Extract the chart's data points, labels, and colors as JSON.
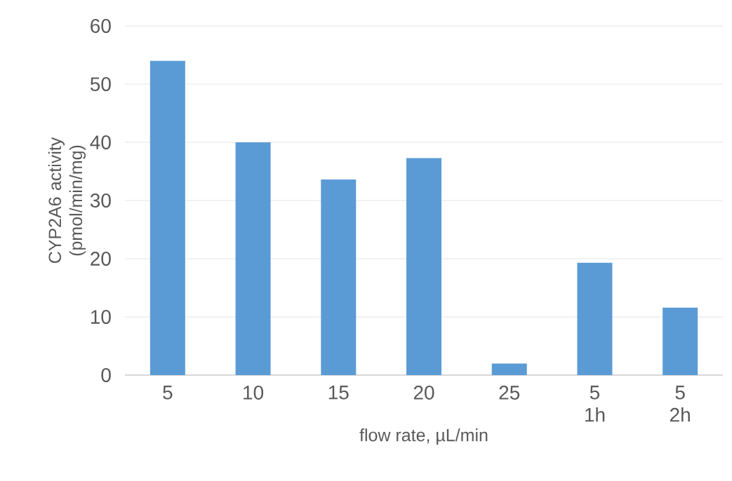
{
  "chart_data": {
    "type": "bar",
    "xlabel": "flow rate, µL/min",
    "ylabel": "CYP2A6 activity (pmol/min/mg)",
    "categories": [
      "5",
      "10",
      "15",
      "20",
      "25",
      "5 1h",
      "5 2h"
    ],
    "values": [
      54,
      40,
      33.6,
      37.3,
      2,
      19.3,
      11.6
    ],
    "color": "#5b9bd5",
    "ylim": [
      0,
      60
    ],
    "yticks": [
      0,
      10,
      20,
      30,
      40,
      50,
      60
    ],
    "grid": "y"
  }
}
